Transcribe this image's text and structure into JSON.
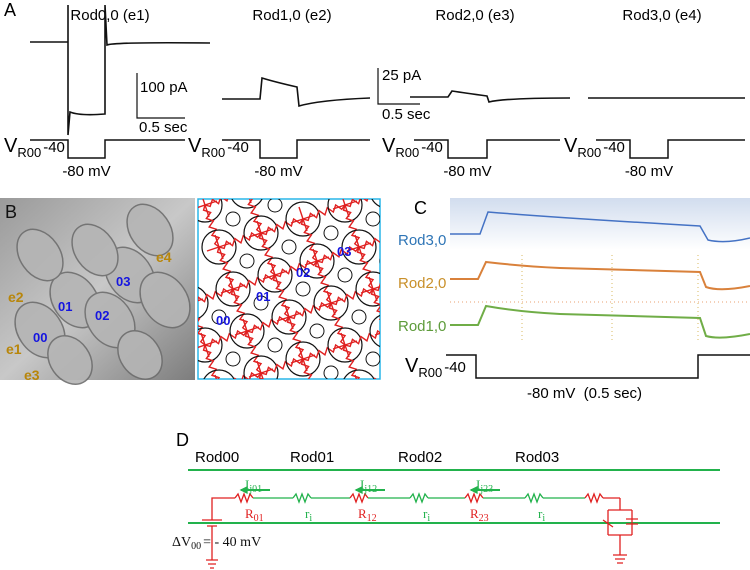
{
  "panel_a": {
    "label": "A",
    "titles": [
      "Rod0,0 (e1)",
      "Rod1,0 (e2)",
      "Rod2,0 (e3)",
      "Rod3,0 (e4)"
    ],
    "scale_bar_1": {
      "current": "100 pA",
      "time": "0.5 sec"
    },
    "scale_bar_2": {
      "current": "25 pA",
      "time": "0.5 sec"
    },
    "protocol": {
      "v": "V",
      "sub": "R00",
      "hold": "-40",
      "step": "-80 mV"
    }
  },
  "panel_b": {
    "label": "B",
    "electrodes": [
      "e4",
      "e2",
      "e1",
      "e3"
    ],
    "rods": [
      "00",
      "01",
      "02",
      "03"
    ]
  },
  "panel_c": {
    "label": "C",
    "traces": [
      "Rod3,0",
      "Rod2,0",
      "Rod1,0"
    ],
    "protocol": {
      "v": "V",
      "sub": "R00",
      "hold": "-40",
      "step": "-80 mV  (0.5 sec)"
    }
  },
  "panel_d": {
    "label": "D",
    "rods": [
      "Rod00",
      "Rod01",
      "Rod02",
      "Rod03"
    ],
    "currents": [
      {
        "name": "I",
        "sub": "j01"
      },
      {
        "name": "I",
        "sub": "j12"
      },
      {
        "name": "I",
        "sub": "j23"
      }
    ],
    "junction_resistors": [
      {
        "name": "R",
        "sub": "01"
      },
      {
        "name": "R",
        "sub": "12"
      },
      {
        "name": "R",
        "sub": "23"
      }
    ],
    "internal_resistor": {
      "name": "r",
      "sub": "i"
    },
    "voltage": {
      "name": "ΔV",
      "sub": "00",
      "value": "= - 40 mV"
    }
  }
}
